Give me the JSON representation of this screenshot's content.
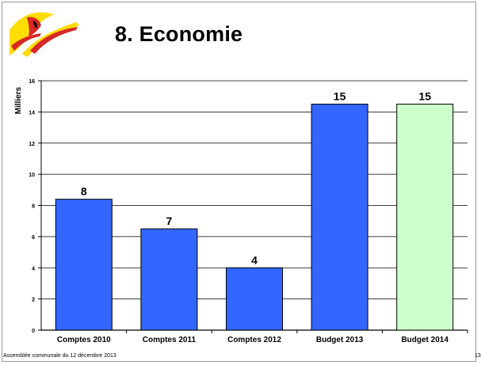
{
  "slide": {
    "title": "8. Economie",
    "footer": "Assemblée communale du 12 décembre 2013",
    "page_number": "13"
  },
  "colors": {
    "bar_actual": "#3366ff",
    "bar_budget_2014": "#ccffcc",
    "bar_outline": "#000000",
    "gridline": "#000000",
    "logo_yellow": "#ffdd00",
    "logo_red": "#d62828"
  },
  "chart_data": {
    "type": "bar",
    "ylabel": "Milliers",
    "xlabel": "",
    "ylim": [
      0,
      16
    ],
    "yticks": [
      0,
      2,
      4,
      6,
      8,
      10,
      12,
      14,
      16
    ],
    "grid": true,
    "categories": [
      "Comptes 2010",
      "Comptes 2011",
      "Comptes 2012",
      "Budget 2013",
      "Budget 2014"
    ],
    "values": [
      8.4,
      6.5,
      4.0,
      14.5,
      14.5
    ],
    "data_labels": [
      "8",
      "7",
      "4",
      "15",
      "15"
    ],
    "bar_colors": [
      "#3366ff",
      "#3366ff",
      "#3366ff",
      "#3366ff",
      "#ccffcc"
    ]
  }
}
